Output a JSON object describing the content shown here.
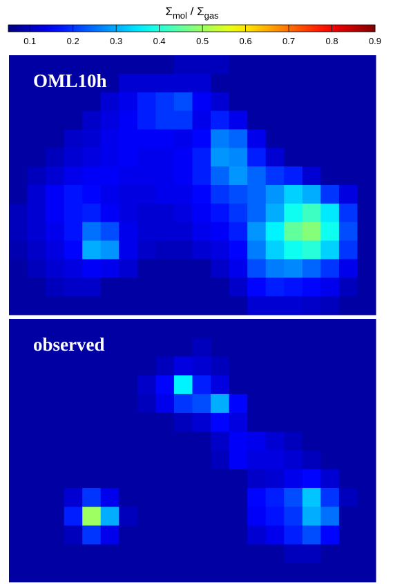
{
  "chart_data": {
    "type": "heatmap",
    "colorbar_label": [
      "Σ",
      "mol",
      " / Σ",
      "gas"
    ],
    "clim": [
      0.05,
      0.9
    ],
    "colormap": "jet",
    "cticks": [
      0.1,
      0.2,
      0.3,
      0.4,
      0.5,
      0.6,
      0.7,
      0.8,
      0.9
    ],
    "panels": [
      {
        "label": "OML10h",
        "z": [
          [
            0.08,
            0.08,
            0.08,
            0.08,
            0.08,
            0.08,
            0.08,
            0.08,
            0.08,
            0.1,
            0.1,
            0.1,
            0.08,
            0.08,
            0.08,
            0.08,
            0.08,
            0.08,
            0.08,
            0.08
          ],
          [
            0.08,
            0.08,
            0.08,
            0.08,
            0.08,
            0.08,
            0.12,
            0.12,
            0.12,
            0.12,
            0.12,
            0.08,
            0.08,
            0.08,
            0.08,
            0.08,
            0.08,
            0.08,
            0.08,
            0.08
          ],
          [
            0.08,
            0.08,
            0.08,
            0.08,
            0.08,
            0.12,
            0.14,
            0.18,
            0.2,
            0.22,
            0.15,
            0.12,
            0.08,
            0.08,
            0.08,
            0.08,
            0.08,
            0.08,
            0.08,
            0.08
          ],
          [
            0.08,
            0.08,
            0.08,
            0.08,
            0.11,
            0.13,
            0.15,
            0.18,
            0.2,
            0.2,
            0.14,
            0.18,
            0.14,
            0.08,
            0.08,
            0.08,
            0.08,
            0.08,
            0.08,
            0.08
          ],
          [
            0.08,
            0.08,
            0.08,
            0.11,
            0.12,
            0.14,
            0.15,
            0.15,
            0.15,
            0.14,
            0.16,
            0.26,
            0.24,
            0.14,
            0.08,
            0.08,
            0.08,
            0.08,
            0.08,
            0.08
          ],
          [
            0.08,
            0.08,
            0.1,
            0.12,
            0.13,
            0.14,
            0.15,
            0.14,
            0.14,
            0.15,
            0.18,
            0.28,
            0.27,
            0.18,
            0.12,
            0.08,
            0.08,
            0.08,
            0.08,
            0.08
          ],
          [
            0.08,
            0.1,
            0.12,
            0.14,
            0.15,
            0.15,
            0.14,
            0.14,
            0.14,
            0.15,
            0.18,
            0.24,
            0.28,
            0.24,
            0.2,
            0.18,
            0.12,
            0.08,
            0.08,
            0.08
          ],
          [
            0.08,
            0.12,
            0.15,
            0.17,
            0.16,
            0.14,
            0.13,
            0.13,
            0.14,
            0.14,
            0.16,
            0.2,
            0.22,
            0.24,
            0.28,
            0.33,
            0.3,
            0.2,
            0.13,
            0.08
          ],
          [
            0.1,
            0.12,
            0.15,
            0.17,
            0.18,
            0.15,
            0.13,
            0.12,
            0.12,
            0.13,
            0.15,
            0.17,
            0.2,
            0.24,
            0.3,
            0.38,
            0.42,
            0.35,
            0.2,
            0.08
          ],
          [
            0.1,
            0.12,
            0.14,
            0.17,
            0.25,
            0.22,
            0.14,
            0.12,
            0.12,
            0.12,
            0.14,
            0.15,
            0.18,
            0.28,
            0.36,
            0.45,
            0.48,
            0.38,
            0.22,
            0.08
          ],
          [
            0.09,
            0.11,
            0.13,
            0.16,
            0.3,
            0.28,
            0.14,
            0.11,
            0.1,
            0.1,
            0.12,
            0.13,
            0.16,
            0.26,
            0.33,
            0.38,
            0.4,
            0.33,
            0.2,
            0.08
          ],
          [
            0.08,
            0.1,
            0.12,
            0.13,
            0.15,
            0.14,
            0.12,
            0.08,
            0.08,
            0.08,
            0.08,
            0.11,
            0.14,
            0.22,
            0.26,
            0.27,
            0.24,
            0.2,
            0.14,
            0.08
          ],
          [
            0.08,
            0.08,
            0.1,
            0.11,
            0.11,
            0.08,
            0.08,
            0.08,
            0.08,
            0.08,
            0.08,
            0.08,
            0.11,
            0.16,
            0.18,
            0.17,
            0.16,
            0.14,
            0.1,
            0.08
          ],
          [
            0.08,
            0.08,
            0.08,
            0.08,
            0.08,
            0.08,
            0.08,
            0.08,
            0.08,
            0.08,
            0.08,
            0.08,
            0.08,
            0.12,
            0.12,
            0.12,
            0.11,
            0.1,
            0.08,
            0.08
          ]
        ]
      },
      {
        "label": "observed",
        "z": [
          [
            0.08,
            0.08,
            0.08,
            0.08,
            0.08,
            0.08,
            0.08,
            0.08,
            0.08,
            0.08,
            0.08,
            0.08,
            0.08,
            0.08,
            0.08,
            0.08,
            0.08,
            0.08,
            0.08,
            0.08
          ],
          [
            0.08,
            0.08,
            0.08,
            0.08,
            0.08,
            0.08,
            0.08,
            0.08,
            0.08,
            0.08,
            0.1,
            0.08,
            0.08,
            0.08,
            0.08,
            0.08,
            0.08,
            0.08,
            0.08,
            0.08
          ],
          [
            0.08,
            0.08,
            0.08,
            0.08,
            0.08,
            0.08,
            0.08,
            0.08,
            0.1,
            0.13,
            0.12,
            0.1,
            0.08,
            0.08,
            0.08,
            0.08,
            0.08,
            0.08,
            0.08,
            0.08
          ],
          [
            0.08,
            0.08,
            0.08,
            0.08,
            0.08,
            0.08,
            0.08,
            0.11,
            0.16,
            0.36,
            0.18,
            0.13,
            0.08,
            0.08,
            0.08,
            0.08,
            0.08,
            0.08,
            0.08,
            0.08
          ],
          [
            0.08,
            0.08,
            0.08,
            0.08,
            0.08,
            0.08,
            0.08,
            0.1,
            0.14,
            0.2,
            0.22,
            0.3,
            0.16,
            0.08,
            0.08,
            0.08,
            0.08,
            0.08,
            0.08,
            0.08
          ],
          [
            0.08,
            0.08,
            0.08,
            0.08,
            0.08,
            0.08,
            0.08,
            0.08,
            0.08,
            0.1,
            0.12,
            0.16,
            0.13,
            0.08,
            0.08,
            0.08,
            0.08,
            0.08,
            0.08,
            0.08
          ],
          [
            0.08,
            0.08,
            0.08,
            0.08,
            0.08,
            0.08,
            0.08,
            0.08,
            0.08,
            0.08,
            0.08,
            0.11,
            0.15,
            0.14,
            0.12,
            0.1,
            0.08,
            0.08,
            0.08,
            0.08
          ],
          [
            0.08,
            0.08,
            0.08,
            0.08,
            0.08,
            0.08,
            0.08,
            0.08,
            0.08,
            0.08,
            0.08,
            0.1,
            0.15,
            0.13,
            0.13,
            0.12,
            0.1,
            0.08,
            0.08,
            0.08
          ],
          [
            0.08,
            0.08,
            0.08,
            0.08,
            0.08,
            0.08,
            0.08,
            0.08,
            0.08,
            0.08,
            0.08,
            0.08,
            0.08,
            0.11,
            0.12,
            0.14,
            0.16,
            0.12,
            0.08,
            0.08
          ],
          [
            0.08,
            0.08,
            0.08,
            0.12,
            0.2,
            0.14,
            0.08,
            0.08,
            0.08,
            0.08,
            0.08,
            0.08,
            0.08,
            0.16,
            0.18,
            0.22,
            0.32,
            0.2,
            0.1,
            0.08
          ],
          [
            0.08,
            0.08,
            0.08,
            0.18,
            0.5,
            0.3,
            0.1,
            0.08,
            0.08,
            0.08,
            0.08,
            0.08,
            0.08,
            0.15,
            0.17,
            0.2,
            0.3,
            0.25,
            0.08,
            0.08
          ],
          [
            0.08,
            0.08,
            0.08,
            0.1,
            0.2,
            0.14,
            0.08,
            0.08,
            0.08,
            0.08,
            0.08,
            0.08,
            0.08,
            0.12,
            0.14,
            0.18,
            0.22,
            0.16,
            0.08,
            0.08
          ],
          [
            0.08,
            0.08,
            0.08,
            0.08,
            0.08,
            0.08,
            0.08,
            0.08,
            0.08,
            0.08,
            0.08,
            0.08,
            0.08,
            0.08,
            0.08,
            0.1,
            0.1,
            0.08,
            0.08,
            0.08
          ],
          [
            0.08,
            0.08,
            0.08,
            0.08,
            0.08,
            0.08,
            0.08,
            0.08,
            0.08,
            0.08,
            0.08,
            0.08,
            0.08,
            0.08,
            0.08,
            0.08,
            0.08,
            0.08,
            0.08,
            0.08
          ]
        ]
      }
    ]
  }
}
